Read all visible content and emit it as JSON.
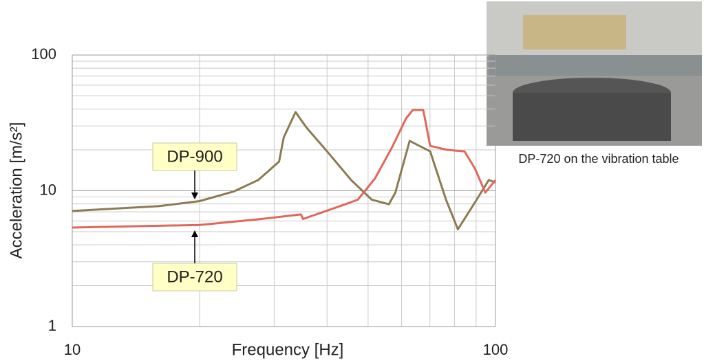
{
  "chart_data": {
    "type": "line",
    "xlabel": "Frequency [Hz]",
    "ylabel": "Acceleration [m/s²]",
    "xlog": true,
    "ylog": true,
    "grid": true,
    "xlim": [
      10,
      100
    ],
    "ylim": [
      1,
      100
    ],
    "xticks": [
      10,
      100
    ],
    "yticks": [
      1,
      10,
      100
    ],
    "xminorticks": [
      20,
      30,
      40,
      50,
      60,
      70,
      80,
      90
    ],
    "yminorticks": [
      2,
      3,
      4,
      5,
      6,
      7,
      8,
      9,
      20,
      30,
      40,
      50,
      60,
      70,
      80,
      90
    ],
    "series": [
      {
        "name": "DP-900",
        "color": "#8c7a52",
        "x": [
          10,
          16,
          20,
          24.1,
          27.5,
          30.8,
          31.6,
          33.7,
          35.7,
          40,
          45.6,
          51,
          56,
          58,
          62.7,
          70.1,
          76.4,
          81.5,
          89.4,
          96.4,
          100
        ],
        "values": [
          7.1,
          7.7,
          8.4,
          9.9,
          12,
          16.4,
          24.7,
          38,
          29.4,
          19.5,
          12,
          8.6,
          7.96,
          9.7,
          23.3,
          19.5,
          8.6,
          5.2,
          8.2,
          12,
          11.5
        ]
      },
      {
        "name": "DP-720",
        "color": "#e0675a",
        "x": [
          10,
          20,
          28,
          34.7,
          35.1,
          43.9,
          47.3,
          51.9,
          57,
          61.5,
          63.8,
          67.5,
          70.1,
          76.9,
          84.5,
          89.4,
          94.6,
          100
        ],
        "values": [
          5.36,
          5.6,
          6.2,
          6.7,
          6.2,
          7.9,
          8.6,
          12.3,
          21,
          34.2,
          39.4,
          39.4,
          21.4,
          20,
          19.5,
          14.6,
          9.7,
          12
        ]
      }
    ],
    "caption": "DP-720 on the vibration table"
  }
}
